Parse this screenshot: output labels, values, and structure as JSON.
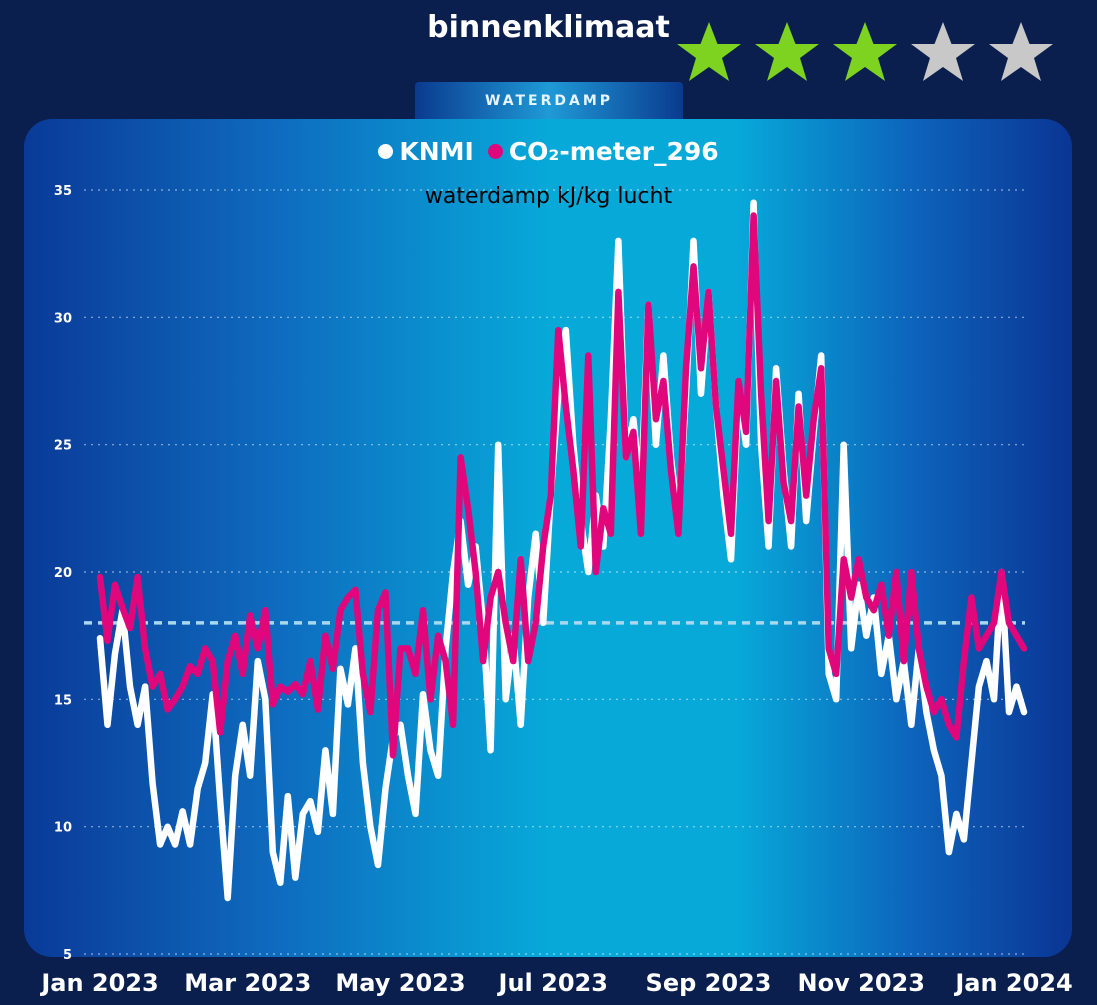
{
  "header": {
    "title": "binnenklimaat",
    "rating": {
      "value": 3,
      "max": 5,
      "filled_color": "#7ed321",
      "empty_color": "#c8c8c8"
    },
    "tab_label": "WATERDAMP"
  },
  "colors": {
    "series_knmi": "#ffffff",
    "series_co2": "#e0077d",
    "reference_line": "#a8d8ee"
  },
  "legend": {
    "item1": "KNMI",
    "item2": "CO₂-meter_296"
  },
  "chart_data": {
    "type": "line",
    "title": "",
    "ylabel": "waterdamp kJ/kg lucht",
    "ylim": [
      5,
      35
    ],
    "yticks": [
      "5",
      "10",
      "15",
      "20",
      "25",
      "30",
      "35"
    ],
    "xlim": [
      "2023-01-01",
      "2024-01-01"
    ],
    "xticks": [
      "Jan 2023",
      "Mar 2023",
      "May 2023",
      "Jul 2023",
      "Sep 2023",
      "Nov 2023",
      "Jan 2024"
    ],
    "reference_value": 18,
    "grid": true,
    "series": [
      {
        "name": "KNMI",
        "points": [
          [
            "2023-01-01",
            17.4
          ],
          [
            "2023-01-04",
            14.0
          ],
          [
            "2023-01-07",
            16.8
          ],
          [
            "2023-01-10",
            18.5
          ],
          [
            "2023-01-13",
            15.5
          ],
          [
            "2023-01-16",
            14.0
          ],
          [
            "2023-01-19",
            15.5
          ],
          [
            "2023-01-22",
            11.7
          ],
          [
            "2023-01-25",
            9.3
          ],
          [
            "2023-01-28",
            10.0
          ],
          [
            "2023-01-31",
            9.3
          ],
          [
            "2023-02-03",
            10.6
          ],
          [
            "2023-02-06",
            9.3
          ],
          [
            "2023-02-09",
            11.5
          ],
          [
            "2023-02-12",
            12.5
          ],
          [
            "2023-02-15",
            15.2
          ],
          [
            "2023-02-18",
            11.0
          ],
          [
            "2023-02-21",
            7.2
          ],
          [
            "2023-02-24",
            12.0
          ],
          [
            "2023-02-27",
            14.0
          ],
          [
            "2023-03-02",
            12.0
          ],
          [
            "2023-03-05",
            16.5
          ],
          [
            "2023-03-08",
            15.0
          ],
          [
            "2023-03-11",
            9.0
          ],
          [
            "2023-03-14",
            7.8
          ],
          [
            "2023-03-17",
            11.2
          ],
          [
            "2023-03-20",
            8.0
          ],
          [
            "2023-03-23",
            10.5
          ],
          [
            "2023-03-26",
            11.0
          ],
          [
            "2023-03-29",
            9.8
          ],
          [
            "2023-04-01",
            13.0
          ],
          [
            "2023-04-04",
            10.5
          ],
          [
            "2023-04-07",
            16.2
          ],
          [
            "2023-04-10",
            14.8
          ],
          [
            "2023-04-13",
            17.0
          ],
          [
            "2023-04-16",
            12.5
          ],
          [
            "2023-04-19",
            10.0
          ],
          [
            "2023-04-22",
            8.5
          ],
          [
            "2023-04-25",
            11.5
          ],
          [
            "2023-04-28",
            13.5
          ],
          [
            "2023-05-01",
            14.0
          ],
          [
            "2023-05-04",
            12.0
          ],
          [
            "2023-05-07",
            10.5
          ],
          [
            "2023-05-10",
            15.2
          ],
          [
            "2023-05-13",
            13.0
          ],
          [
            "2023-05-16",
            12.0
          ],
          [
            "2023-05-19",
            17.0
          ],
          [
            "2023-05-22",
            20.0
          ],
          [
            "2023-05-25",
            22.0
          ],
          [
            "2023-05-28",
            19.5
          ],
          [
            "2023-05-31",
            21.0
          ],
          [
            "2023-06-03",
            18.0
          ],
          [
            "2023-06-06",
            13.0
          ],
          [
            "2023-06-09",
            25.0
          ],
          [
            "2023-06-12",
            15.0
          ],
          [
            "2023-06-15",
            17.5
          ],
          [
            "2023-06-18",
            14.0
          ],
          [
            "2023-06-21",
            19.0
          ],
          [
            "2023-06-24",
            21.5
          ],
          [
            "2023-06-27",
            18.0
          ],
          [
            "2023-06-30",
            23.0
          ],
          [
            "2023-07-03",
            27.0
          ],
          [
            "2023-07-06",
            29.5
          ],
          [
            "2023-07-09",
            25.0
          ],
          [
            "2023-07-12",
            22.0
          ],
          [
            "2023-07-15",
            20.0
          ],
          [
            "2023-07-18",
            23.0
          ],
          [
            "2023-07-21",
            21.0
          ],
          [
            "2023-07-24",
            26.0
          ],
          [
            "2023-07-27",
            33.0
          ],
          [
            "2023-07-30",
            24.5
          ],
          [
            "2023-08-02",
            26.0
          ],
          [
            "2023-08-05",
            23.0
          ],
          [
            "2023-08-08",
            30.5
          ],
          [
            "2023-08-11",
            25.0
          ],
          [
            "2023-08-14",
            28.5
          ],
          [
            "2023-08-17",
            24.5
          ],
          [
            "2023-08-20",
            22.0
          ],
          [
            "2023-08-23",
            27.0
          ],
          [
            "2023-08-26",
            33.0
          ],
          [
            "2023-08-29",
            27.0
          ],
          [
            "2023-09-01",
            31.0
          ],
          [
            "2023-09-04",
            26.5
          ],
          [
            "2023-09-07",
            23.0
          ],
          [
            "2023-09-10",
            20.5
          ],
          [
            "2023-09-13",
            27.0
          ],
          [
            "2023-09-16",
            25.0
          ],
          [
            "2023-09-19",
            34.5
          ],
          [
            "2023-09-22",
            25.0
          ],
          [
            "2023-09-25",
            21.0
          ],
          [
            "2023-09-28",
            28.0
          ],
          [
            "2023-10-01",
            24.0
          ],
          [
            "2023-10-04",
            21.0
          ],
          [
            "2023-10-07",
            27.0
          ],
          [
            "2023-10-10",
            22.0
          ],
          [
            "2023-10-13",
            25.5
          ],
          [
            "2023-10-16",
            28.5
          ],
          [
            "2023-10-19",
            16.0
          ],
          [
            "2023-10-22",
            15.0
          ],
          [
            "2023-10-25",
            25.0
          ],
          [
            "2023-10-28",
            17.0
          ],
          [
            "2023-10-31",
            19.5
          ],
          [
            "2023-11-03",
            17.5
          ],
          [
            "2023-11-06",
            19.0
          ],
          [
            "2023-11-09",
            16.0
          ],
          [
            "2023-11-12",
            17.5
          ],
          [
            "2023-11-15",
            15.0
          ],
          [
            "2023-11-18",
            16.5
          ],
          [
            "2023-11-21",
            14.0
          ],
          [
            "2023-11-24",
            17.0
          ],
          [
            "2023-11-27",
            14.5
          ],
          [
            "2023-11-30",
            13.0
          ],
          [
            "2023-12-03",
            12.0
          ],
          [
            "2023-12-06",
            9.0
          ],
          [
            "2023-12-09",
            10.5
          ],
          [
            "2023-12-12",
            9.5
          ],
          [
            "2023-12-15",
            12.5
          ],
          [
            "2023-12-18",
            15.5
          ],
          [
            "2023-12-21",
            16.5
          ],
          [
            "2023-12-24",
            15.0
          ],
          [
            "2023-12-27",
            20.0
          ],
          [
            "2023-12-30",
            14.5
          ],
          [
            "2024-01-02",
            15.5
          ],
          [
            "2024-01-05",
            14.5
          ]
        ]
      },
      {
        "name": "CO₂-meter_296",
        "points": [
          [
            "2023-01-01",
            19.8
          ],
          [
            "2023-01-04",
            17.3
          ],
          [
            "2023-01-07",
            19.5
          ],
          [
            "2023-01-10",
            18.6
          ],
          [
            "2023-01-13",
            17.8
          ],
          [
            "2023-01-16",
            19.8
          ],
          [
            "2023-01-19",
            17.0
          ],
          [
            "2023-01-22",
            15.5
          ],
          [
            "2023-01-25",
            16.0
          ],
          [
            "2023-01-28",
            14.6
          ],
          [
            "2023-01-31",
            15.0
          ],
          [
            "2023-02-03",
            15.5
          ],
          [
            "2023-02-06",
            16.3
          ],
          [
            "2023-02-09",
            16.0
          ],
          [
            "2023-02-12",
            17.0
          ],
          [
            "2023-02-15",
            16.5
          ],
          [
            "2023-02-18",
            13.7
          ],
          [
            "2023-02-21",
            16.5
          ],
          [
            "2023-02-24",
            17.5
          ],
          [
            "2023-02-27",
            16.0
          ],
          [
            "2023-03-02",
            18.3
          ],
          [
            "2023-03-05",
            17.0
          ],
          [
            "2023-03-08",
            18.5
          ],
          [
            "2023-03-11",
            14.8
          ],
          [
            "2023-03-14",
            15.5
          ],
          [
            "2023-03-17",
            15.3
          ],
          [
            "2023-03-20",
            15.6
          ],
          [
            "2023-03-23",
            15.2
          ],
          [
            "2023-03-26",
            16.5
          ],
          [
            "2023-03-29",
            14.6
          ],
          [
            "2023-04-01",
            17.5
          ],
          [
            "2023-04-04",
            16.2
          ],
          [
            "2023-04-07",
            18.5
          ],
          [
            "2023-04-10",
            19.0
          ],
          [
            "2023-04-13",
            19.3
          ],
          [
            "2023-04-16",
            16.0
          ],
          [
            "2023-04-19",
            14.5
          ],
          [
            "2023-04-22",
            18.5
          ],
          [
            "2023-04-25",
            19.2
          ],
          [
            "2023-04-28",
            12.8
          ],
          [
            "2023-05-01",
            17.0
          ],
          [
            "2023-05-04",
            17.0
          ],
          [
            "2023-05-07",
            16.0
          ],
          [
            "2023-05-10",
            18.5
          ],
          [
            "2023-05-13",
            15.0
          ],
          [
            "2023-05-16",
            17.5
          ],
          [
            "2023-05-19",
            16.5
          ],
          [
            "2023-05-22",
            14.0
          ],
          [
            "2023-05-25",
            24.5
          ],
          [
            "2023-05-28",
            22.5
          ],
          [
            "2023-05-31",
            20.0
          ],
          [
            "2023-06-03",
            16.5
          ],
          [
            "2023-06-06",
            19.0
          ],
          [
            "2023-06-09",
            20.0
          ],
          [
            "2023-06-12",
            18.0
          ],
          [
            "2023-06-15",
            16.5
          ],
          [
            "2023-06-18",
            20.5
          ],
          [
            "2023-06-21",
            16.5
          ],
          [
            "2023-06-24",
            18.0
          ],
          [
            "2023-06-27",
            21.0
          ],
          [
            "2023-06-30",
            23.0
          ],
          [
            "2023-07-03",
            29.5
          ],
          [
            "2023-07-06",
            26.5
          ],
          [
            "2023-07-09",
            24.0
          ],
          [
            "2023-07-12",
            21.0
          ],
          [
            "2023-07-15",
            28.5
          ],
          [
            "2023-07-18",
            20.0
          ],
          [
            "2023-07-21",
            22.5
          ],
          [
            "2023-07-24",
            21.5
          ],
          [
            "2023-07-27",
            31.0
          ],
          [
            "2023-07-30",
            24.5
          ],
          [
            "2023-08-02",
            25.5
          ],
          [
            "2023-08-05",
            21.5
          ],
          [
            "2023-08-08",
            30.5
          ],
          [
            "2023-08-11",
            26.0
          ],
          [
            "2023-08-14",
            27.5
          ],
          [
            "2023-08-17",
            24.0
          ],
          [
            "2023-08-20",
            21.5
          ],
          [
            "2023-08-23",
            28.0
          ],
          [
            "2023-08-26",
            32.0
          ],
          [
            "2023-08-29",
            28.0
          ],
          [
            "2023-09-01",
            31.0
          ],
          [
            "2023-09-04",
            26.5
          ],
          [
            "2023-09-07",
            24.0
          ],
          [
            "2023-09-10",
            21.5
          ],
          [
            "2023-09-13",
            27.5
          ],
          [
            "2023-09-16",
            25.5
          ],
          [
            "2023-09-19",
            34.0
          ],
          [
            "2023-09-22",
            27.0
          ],
          [
            "2023-09-25",
            22.0
          ],
          [
            "2023-09-28",
            27.5
          ],
          [
            "2023-10-01",
            23.5
          ],
          [
            "2023-10-04",
            22.0
          ],
          [
            "2023-10-07",
            26.5
          ],
          [
            "2023-10-10",
            23.0
          ],
          [
            "2023-10-13",
            26.0
          ],
          [
            "2023-10-16",
            28.0
          ],
          [
            "2023-10-19",
            17.0
          ],
          [
            "2023-10-22",
            16.0
          ],
          [
            "2023-10-25",
            20.5
          ],
          [
            "2023-10-28",
            19.0
          ],
          [
            "2023-10-31",
            20.5
          ],
          [
            "2023-11-03",
            19.0
          ],
          [
            "2023-11-06",
            18.5
          ],
          [
            "2023-11-09",
            19.5
          ],
          [
            "2023-11-12",
            17.5
          ],
          [
            "2023-11-15",
            20.0
          ],
          [
            "2023-11-18",
            16.5
          ],
          [
            "2023-11-21",
            20.0
          ],
          [
            "2023-11-24",
            17.0
          ],
          [
            "2023-11-27",
            15.5
          ],
          [
            "2023-11-30",
            14.5
          ],
          [
            "2023-12-03",
            15.0
          ],
          [
            "2023-12-06",
            14.0
          ],
          [
            "2023-12-09",
            13.5
          ],
          [
            "2023-12-12",
            16.5
          ],
          [
            "2023-12-15",
            19.0
          ],
          [
            "2023-12-18",
            17.0
          ],
          [
            "2023-12-21",
            17.5
          ],
          [
            "2023-12-24",
            18.0
          ],
          [
            "2023-12-27",
            20.0
          ],
          [
            "2023-12-30",
            18.0
          ],
          [
            "2024-01-02",
            17.5
          ],
          [
            "2024-01-05",
            17.0
          ]
        ]
      }
    ]
  }
}
